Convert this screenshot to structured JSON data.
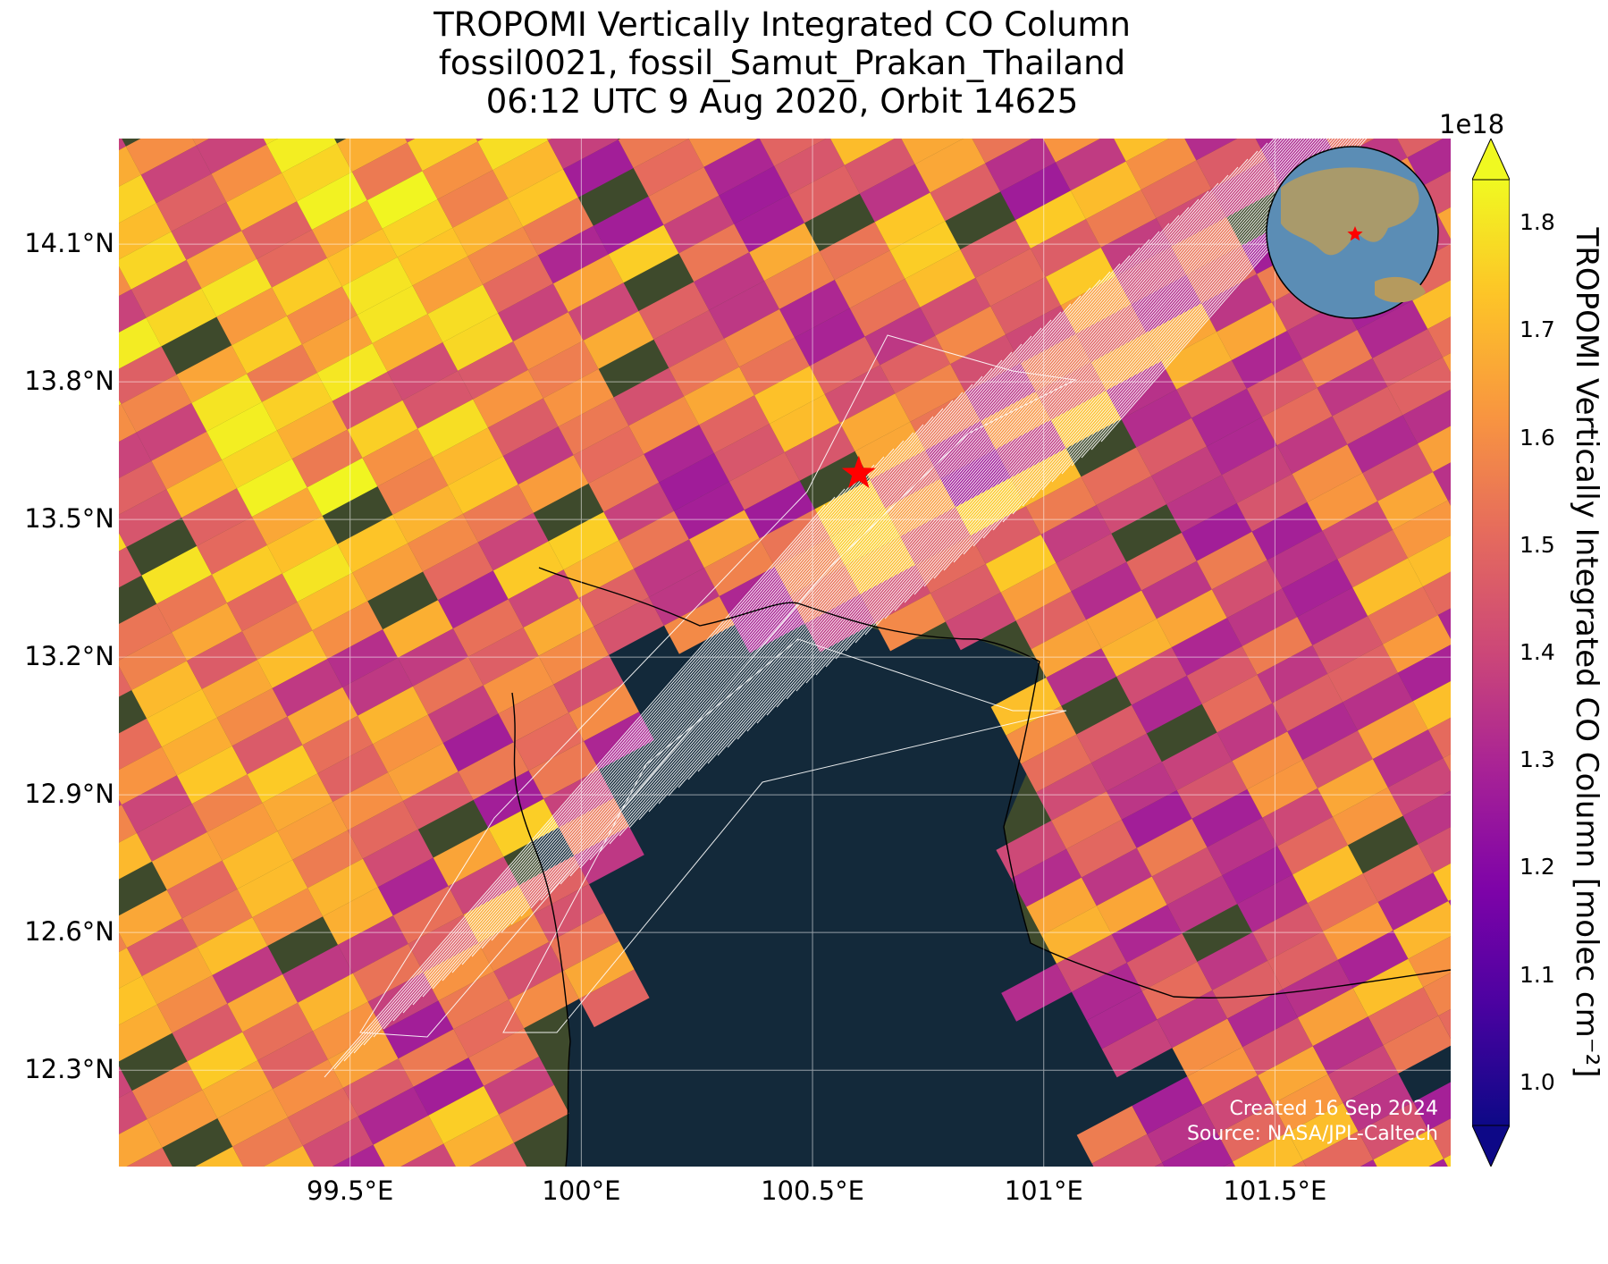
{
  "title": {
    "line1": "TROPOMI Vertically Integrated CO Column",
    "line2": "fossil0021, fossil_Samut_Prakan_Thailand",
    "line3": "06:12 UTC 9 Aug 2020, Orbit 14625"
  },
  "map": {
    "lat_ticks": [
      "14.1°N",
      "13.8°N",
      "13.5°N",
      "13.2°N",
      "12.9°N",
      "12.6°N",
      "12.3°N"
    ],
    "lat_values": [
      14.1,
      13.8,
      13.5,
      13.2,
      12.9,
      12.6,
      12.3
    ],
    "lon_ticks": [
      "99.5°E",
      "100°E",
      "100.5°E",
      "101°E",
      "101.5°E"
    ],
    "lon_values": [
      99.5,
      100.0,
      100.5,
      101.0,
      101.5
    ],
    "extent": {
      "lon_min": 99.0,
      "lon_max": 101.88,
      "lat_min": 12.09,
      "lat_max": 14.33
    },
    "source_marker": {
      "lon": 100.6,
      "lat": 13.6,
      "color": "#ff0000"
    },
    "credit_line1": "Created 16 Sep 2024",
    "credit_line2": "Source: NASA/JPL-Caltech"
  },
  "colorbar": {
    "exponent": "1e18",
    "ticks": [
      "1.0",
      "1.1",
      "1.2",
      "1.3",
      "1.4",
      "1.5",
      "1.6",
      "1.7",
      "1.8"
    ],
    "label": "TROPOMI Vertically Integrated CO Column [molec cm⁻²]",
    "range": [
      0.96,
      1.84
    ],
    "colormap": "plasma"
  }
}
